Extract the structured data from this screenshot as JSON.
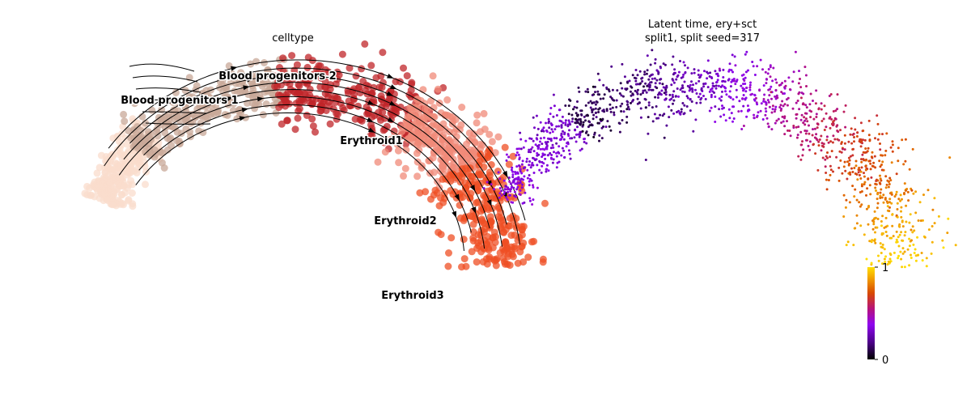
{
  "panels": {
    "left_title": "celltype",
    "right_title_line1": "Latent time, ery+sct",
    "right_title_line2": "split1, split seed=317"
  },
  "chart_data": [
    {
      "type": "scatter",
      "title": "celltype",
      "description_of_encoding": "UMAP embedding colored by cell type with RNA velocity streamlines",
      "clusters": [
        {
          "name": "Blood progenitors 1",
          "color": "#f9dccc"
        },
        {
          "name": "Blood progenitors 2",
          "color": "#c8a898"
        },
        {
          "name": "Erythroid1",
          "color": "#c0262a"
        },
        {
          "name": "Erythroid2",
          "color": "#f08a78"
        },
        {
          "name": "Erythroid3",
          "color": "#ef4f24"
        }
      ],
      "streamlines": true,
      "axes_visible": false,
      "grid": false
    },
    {
      "type": "scatter",
      "title": "Latent time, ery+sct\nsplit1, split seed=317",
      "colormap": "gnuplot",
      "colorbar": {
        "min": 0,
        "max": 1,
        "ticks": [
          "0",
          "1"
        ],
        "placement": "right"
      },
      "axes_visible": false,
      "grid": false
    }
  ]
}
